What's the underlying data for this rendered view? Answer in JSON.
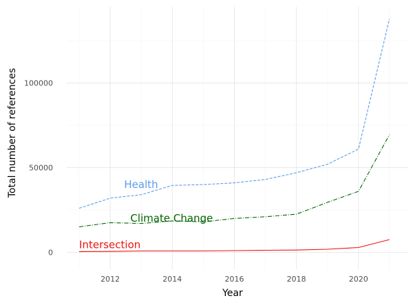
{
  "chart_data": {
    "type": "line",
    "title": "",
    "xlabel": "Year",
    "ylabel": "Total number of references",
    "xlim": [
      2010.6,
      2021.6
    ],
    "ylim": [
      -10000,
      145000
    ],
    "x_ticks": [
      2012,
      2014,
      2016,
      2018,
      2020
    ],
    "y_ticks": [
      0,
      50000,
      100000
    ],
    "x_tick_labels": [
      "2012",
      "2014",
      "2016",
      "2018",
      "2020"
    ],
    "y_tick_labels": [
      "0",
      "50000",
      "100000"
    ],
    "grid": true,
    "legend": "none (labels placed directly on lines)",
    "x": [
      2011,
      2012,
      2013,
      2014,
      2015,
      2016,
      2017,
      2018,
      2019,
      2020,
      2021
    ],
    "series": [
      {
        "name": "Health",
        "color": "#5b9bec",
        "dash": "dashed",
        "values": [
          26000,
          32000,
          34000,
          39500,
          40000,
          41000,
          43000,
          47000,
          52000,
          61000,
          138000
        ]
      },
      {
        "name": "Climate Change",
        "color": "#006400",
        "dash": "dashdot",
        "values": [
          15000,
          17500,
          17000,
          18500,
          18000,
          20000,
          21000,
          22500,
          29500,
          36000,
          69500
        ]
      },
      {
        "name": "Intersection",
        "color": "#ee1111",
        "dash": "solid",
        "values": [
          400,
          500,
          800,
          800,
          800,
          1000,
          1200,
          1300,
          1800,
          2800,
          7500
        ]
      }
    ],
    "annotations": [
      {
        "text": "Health",
        "x": 2012.45,
        "y": 38000,
        "color": "#5b9bec"
      },
      {
        "text": "Climate Change",
        "x": 2012.65,
        "y": 18000,
        "color": "#006400"
      },
      {
        "text": "Intersection",
        "x": 2011.0,
        "y": 2500,
        "color": "#ee1111"
      }
    ]
  }
}
